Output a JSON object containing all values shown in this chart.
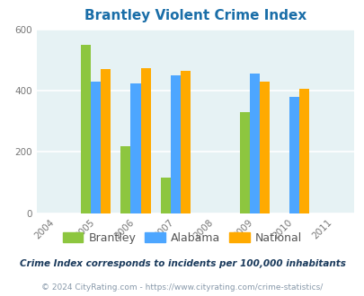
{
  "title": "Brantley Violent Crime Index",
  "years": [
    2004,
    2005,
    2006,
    2007,
    2008,
    2009,
    2010,
    2011
  ],
  "bar_years": [
    2005,
    2006,
    2007,
    2009,
    2010
  ],
  "brantley": [
    550,
    220,
    115,
    330,
    0
  ],
  "alabama": [
    430,
    425,
    450,
    455,
    380
  ],
  "national": [
    470,
    475,
    465,
    430,
    405
  ],
  "color_brantley": "#8dc63f",
  "color_alabama": "#4da6ff",
  "color_national": "#ffaa00",
  "bg_color": "#e6f2f4",
  "ylim": [
    0,
    600
  ],
  "yticks": [
    0,
    200,
    400,
    600
  ],
  "legend_labels": [
    "Brantley",
    "Alabama",
    "National"
  ],
  "footnote1": "Crime Index corresponds to incidents per 100,000 inhabitants",
  "footnote2": "© 2024 CityRating.com - https://www.cityrating.com/crime-statistics/",
  "title_color": "#1a6ea8",
  "footnote1_color": "#1a3a5c",
  "footnote2_color": "#8899aa",
  "grid_color": "#c8dde0"
}
